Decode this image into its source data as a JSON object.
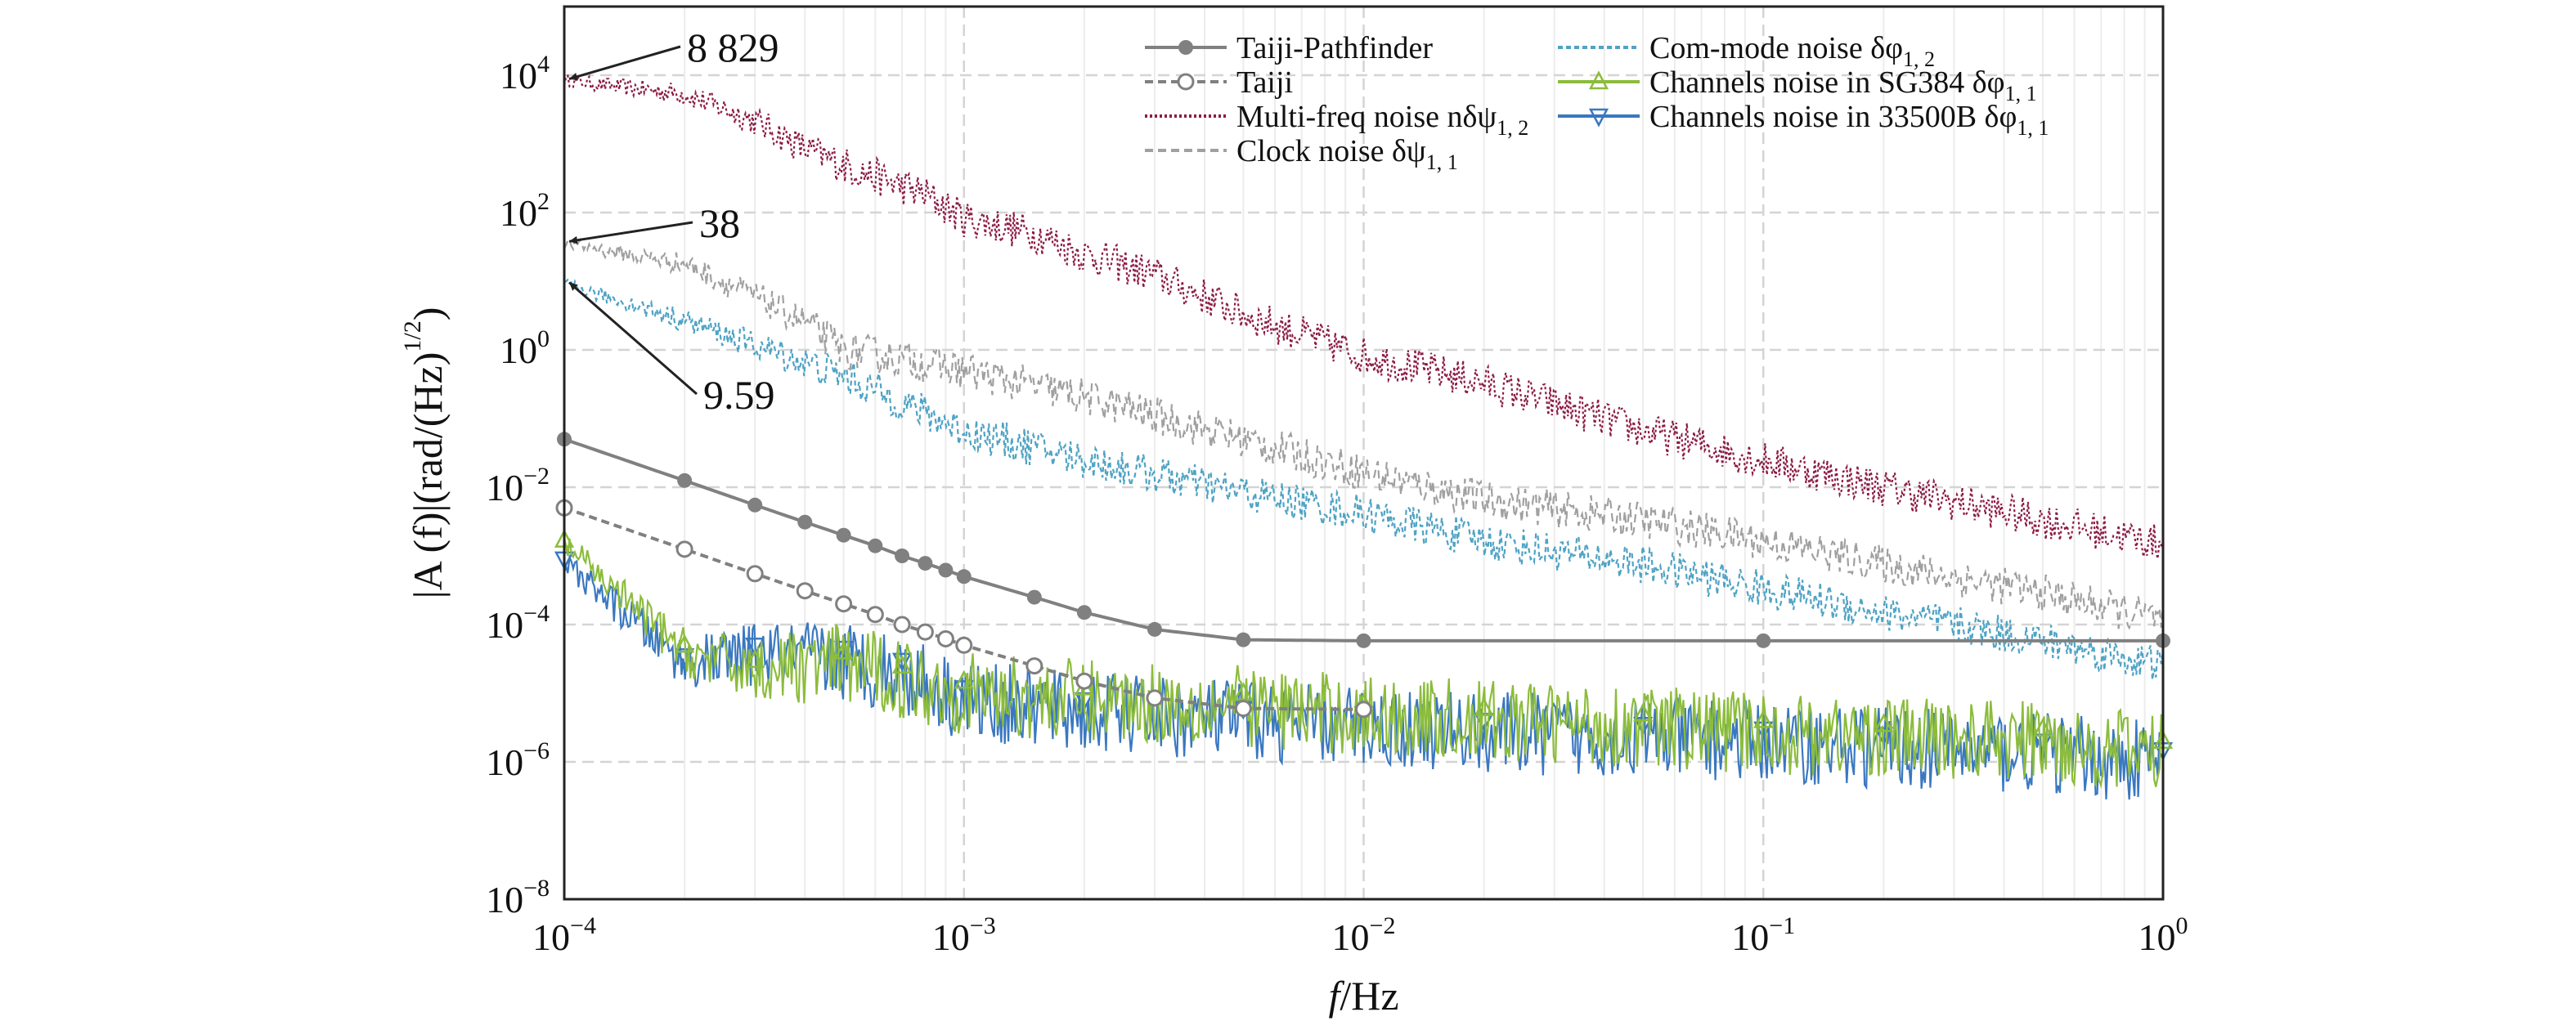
{
  "chart_data": {
    "type": "line",
    "title": "",
    "xlabel": {
      "italic": "f",
      "rest": "/Hz"
    },
    "ylabel": {
      "main": "|A (f)|(rad/(Hz)",
      "exp_num": "1",
      "exp_den": "2",
      "close": ")"
    },
    "x_scale": "log",
    "y_scale": "log",
    "xlim": [
      0.0001,
      1
    ],
    "ylim": [
      1e-08,
      100000
    ],
    "grid": true,
    "legend_position": "top-right",
    "x_ticks": [
      {
        "value": 0.0001,
        "base": "10",
        "exp": "−4"
      },
      {
        "value": 0.001,
        "base": "10",
        "exp": "−3"
      },
      {
        "value": 0.01,
        "base": "10",
        "exp": "−2"
      },
      {
        "value": 0.1,
        "base": "10",
        "exp": "−1"
      },
      {
        "value": 1,
        "base": "10",
        "exp": "0"
      }
    ],
    "y_ticks": [
      {
        "value": 1e-08,
        "base": "10",
        "exp": "−8"
      },
      {
        "value": 1e-06,
        "base": "10",
        "exp": "−6"
      },
      {
        "value": 0.0001,
        "base": "10",
        "exp": "−4"
      },
      {
        "value": 0.01,
        "base": "10",
        "exp": "−2"
      },
      {
        "value": 1,
        "base": "10",
        "exp": "0"
      },
      {
        "value": 100,
        "base": "10",
        "exp": "2"
      },
      {
        "value": 10000,
        "base": "10",
        "exp": "4"
      }
    ],
    "legend": [
      {
        "key": "taiji_pathfinder",
        "label": "Taiji-Pathfinder",
        "color": "#808080",
        "dash": "none",
        "marker": "filled-circle"
      },
      {
        "key": "taiji",
        "label": "Taiji",
        "color": "#808080",
        "dash": "10,6",
        "marker": "open-circle"
      },
      {
        "key": "multi_freq",
        "label": "Multi-freq noise nδψ",
        "sub": "1, 2",
        "color": "#8c1c45",
        "dash": "3,3",
        "marker": "none"
      },
      {
        "key": "clock",
        "label": "Clock noise δψ",
        "sub": "1, 1",
        "color": "#a0a0a0",
        "dash": "10,6",
        "marker": "none"
      },
      {
        "key": "com_mode",
        "label": "Com-mode noise δφ",
        "sub": "1, 2",
        "color": "#4fa3c4",
        "dash": "6,4",
        "marker": "none"
      },
      {
        "key": "sg384",
        "label": "Channels noise in SG384 δφ",
        "sub": "1, 1",
        "color": "#8cbc3c",
        "dash": "none",
        "marker": "triangle-up"
      },
      {
        "key": "b33500",
        "label": "Channels noise in 33500B δφ",
        "sub": "1, 1",
        "color": "#3a78c0",
        "dash": "none",
        "marker": "triangle-down"
      }
    ],
    "annotations": [
      {
        "text": "8 829",
        "x": 0.0001,
        "y": 8829
      },
      {
        "text": "38",
        "x": 0.0001,
        "y": 38
      },
      {
        "text": "9.59",
        "x": 0.0001,
        "y": 9.59
      }
    ],
    "series": [
      {
        "name": "Taiji-Pathfinder",
        "x": [
          0.0001,
          0.0002,
          0.0003,
          0.0004,
          0.0005,
          0.0006,
          0.0007,
          0.0008,
          0.0009,
          0.001,
          0.0015,
          0.002,
          0.003,
          0.005,
          0.01,
          0.1,
          1
        ],
        "y": [
          0.05,
          0.0125,
          0.0055,
          0.0031,
          0.002,
          0.0014,
          0.001,
          0.00078,
          0.00062,
          0.0005,
          0.00025,
          0.00015,
          8.5e-05,
          6e-05,
          5.8e-05,
          5.8e-05,
          5.8e-05
        ]
      },
      {
        "name": "Taiji",
        "x": [
          0.0001,
          0.0002,
          0.0003,
          0.0004,
          0.0005,
          0.0006,
          0.0007,
          0.0008,
          0.0009,
          0.001,
          0.0015,
          0.002,
          0.003,
          0.005,
          0.01
        ],
        "y": [
          0.005,
          0.00125,
          0.00055,
          0.00031,
          0.0002,
          0.00014,
          0.0001,
          7.8e-05,
          6.2e-05,
          5e-05,
          2.5e-05,
          1.5e-05,
          8.5e-06,
          6e-06,
          5.8e-06
        ]
      },
      {
        "name": "Multi-freq noise",
        "x": [
          0.0001,
          0.0002,
          0.0003,
          0.0004,
          0.0005,
          0.0006,
          0.0008,
          0.001,
          0.0015,
          0.002,
          0.003,
          0.005,
          0.01,
          0.02,
          0.05,
          0.1,
          0.2,
          0.5,
          1
        ],
        "y": [
          8829,
          6000,
          2500,
          1000,
          600,
          400,
          220,
          100,
          60,
          30,
          15,
          4,
          1,
          0.4,
          0.08,
          0.03,
          0.012,
          0.004,
          0.0018
        ]
      },
      {
        "name": "Clock noise",
        "x": [
          0.0001,
          0.0002,
          0.0003,
          0.0004,
          0.0005,
          0.0007,
          0.001,
          0.002,
          0.005,
          0.01,
          0.02,
          0.05,
          0.1,
          0.2,
          0.5,
          1
        ],
        "y": [
          38,
          20,
          7,
          3,
          1.2,
          0.9,
          0.6,
          0.25,
          0.06,
          0.02,
          0.008,
          0.004,
          0.002,
          0.0009,
          0.00035,
          0.00014
        ]
      },
      {
        "name": "Com-mode noise",
        "x": [
          0.0001,
          0.0002,
          0.0005,
          0.001,
          0.002,
          0.005,
          0.01,
          0.02,
          0.05,
          0.1,
          0.2,
          0.5,
          1
        ],
        "y": [
          9.59,
          3,
          0.5,
          0.08,
          0.03,
          0.01,
          0.005,
          0.002,
          0.0009,
          0.0004,
          0.00018,
          7e-05,
          3e-05
        ]
      },
      {
        "name": "Channels noise in SG384",
        "x": [
          0.0001,
          0.0002,
          0.0003,
          0.0005,
          0.0007,
          0.001,
          0.002,
          0.005,
          0.01,
          0.02,
          0.05,
          0.1,
          0.2,
          0.5,
          1
        ],
        "y": [
          0.0017,
          5e-05,
          3e-05,
          4e-05,
          2.5e-05,
          1.5e-05,
          1.2e-05,
          1e-05,
          7e-06,
          6e-06,
          5e-06,
          4e-06,
          3.5e-06,
          3e-06,
          2e-06
        ]
      },
      {
        "name": "Channels noise in 33500B",
        "x": [
          0.0001,
          0.0002,
          0.0003,
          0.0005,
          0.0007,
          0.001,
          0.002,
          0.005,
          0.01,
          0.02,
          0.05,
          0.1,
          0.2,
          0.5,
          1
        ],
        "y": [
          0.0009,
          3.5e-05,
          5e-05,
          4.5e-05,
          3e-05,
          1.2e-05,
          8e-06,
          6e-06,
          5e-06,
          4e-06,
          3.5e-06,
          3e-06,
          2.5e-06,
          2e-06,
          1.5e-06
        ]
      }
    ]
  }
}
